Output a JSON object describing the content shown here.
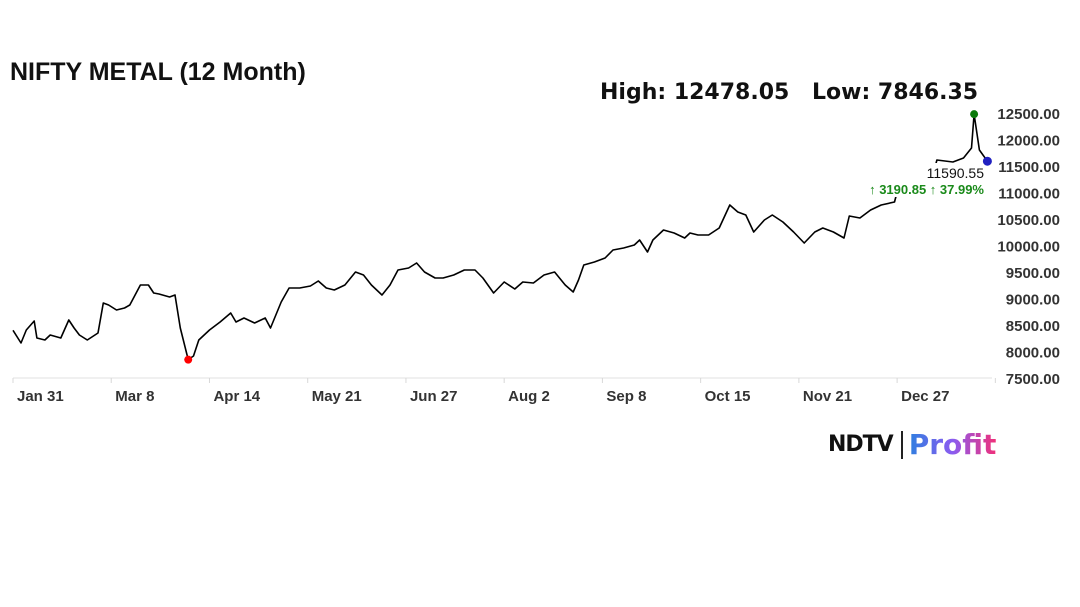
{
  "chart_data": {
    "type": "line",
    "title": "NIFTY METAL (12 Month)",
    "high_label": "High: 12478.05",
    "low_label": "Low: 7846.35",
    "last_value_label": "11590.55",
    "change_label": "↑ 3190.85 ↑ 37.99%",
    "x_tick_labels": [
      "Jan 31",
      "Mar 8",
      "Apr 14",
      "May 21",
      "Jun 27",
      "Aug 2",
      "Sep 8",
      "Oct 15",
      "Nov 21",
      "Dec 27"
    ],
    "y_tick_labels": [
      "7500.00",
      "8000.00",
      "8500.00",
      "9000.00",
      "9500.00",
      "10000.00",
      "10500.00",
      "11000.00",
      "11500.00",
      "12000.00",
      "12500.00"
    ],
    "ylim": [
      7500,
      12500
    ],
    "grid": false,
    "colors": {
      "line": "#000000",
      "low_marker": "#ff0000",
      "high_marker": "#0a7a0a",
      "last_marker": "#2020c0",
      "change": "#1a8a1a"
    },
    "series": [
      {
        "x": [
          "Jan 31",
          "Feb 3",
          "Feb 5",
          "Feb 8",
          "Feb 9",
          "Feb 12",
          "Feb 14",
          "Feb 18",
          "Feb 21",
          "Feb 23",
          "Feb 25",
          "Feb 28",
          "Mar 4",
          "Mar 6",
          "Mar 8",
          "Mar 11",
          "Mar 14",
          "Mar 16",
          "Mar 20",
          "Mar 23",
          "Mar 25",
          "Mar 27",
          "Mar 31",
          "Apr 2",
          "Apr 4",
          "Apr 7",
          "Apr 9",
          "Apr 11",
          "Apr 15",
          "Apr 19",
          "Apr 23",
          "Apr 25",
          "Apr 28",
          "May 2",
          "May 6",
          "May 8",
          "May 12",
          "May 15",
          "May 19",
          "May 23",
          "May 26",
          "May 29",
          "Jun 1",
          "Jun 5",
          "Jun 9",
          "Jun 12",
          "Jun 15",
          "Jun 19",
          "Jun 22",
          "Jun 25",
          "Jun 29",
          "Jul 2",
          "Jul 5",
          "Jul 9",
          "Jul 12",
          "Jul 16",
          "Jul 20",
          "Jul 24",
          "Jul 27",
          "Jul 31",
          "Aug 4",
          "Aug 8",
          "Aug 11",
          "Aug 15",
          "Aug 19",
          "Aug 23",
          "Aug 27",
          "Aug 30",
          "Sep 1",
          "Sep 3",
          "Sep 7",
          "Sep 11",
          "Sep 14",
          "Sep 18",
          "Sep 22",
          "Sep 24",
          "Sep 27",
          "Sep 29",
          "Oct 3",
          "Oct 7",
          "Oct 11",
          "Oct 13",
          "Oct 16",
          "Oct 20",
          "Oct 24",
          "Oct 28",
          "Oct 31",
          "Nov 3",
          "Nov 6",
          "Nov 10",
          "Nov 13",
          "Nov 17",
          "Nov 21",
          "Nov 25",
          "Nov 29",
          "Dec 2",
          "Dec 6",
          "Dec 10",
          "Dec 12",
          "Dec 16",
          "Dec 20",
          "Dec 24",
          "Dec 29",
          "Jan 1",
          "Jan 6",
          "Jan 9",
          "Jan 13",
          "Jan 14",
          "Jan 20",
          "Jan 24",
          "Jan 27",
          "Jan 28",
          "Jan 30",
          "Feb 2"
        ],
        "values": [
          8399.7,
          8160,
          8406,
          8575,
          8255,
          8217,
          8311,
          8255,
          8594,
          8443,
          8311,
          8217,
          8349,
          8915,
          8877,
          8783,
          8821,
          8877,
          9255,
          9255,
          9104,
          9085,
          9028,
          9066,
          8443,
          7846.35,
          7915,
          8217,
          8406,
          8557,
          8726,
          8557,
          8632,
          8538,
          8632,
          8443,
          8934,
          9198,
          9198,
          9236,
          9330,
          9198,
          9160,
          9255,
          9500,
          9443,
          9255,
          9066,
          9255,
          9538,
          9575,
          9670,
          9500,
          9387,
          9387,
          9443,
          9538,
          9538,
          9387,
          9104,
          9311,
          9179,
          9311,
          9292,
          9443,
          9500,
          9255,
          9123,
          9349,
          9632,
          9689,
          9764,
          9915,
          9953,
          10009,
          10104,
          9877,
          10104,
          10292,
          10236,
          10142,
          10236,
          10198,
          10198,
          10330,
          10764,
          10632,
          10575,
          10255,
          10481,
          10575,
          10443,
          10255,
          10047,
          10255,
          10330,
          10255,
          10142,
          10557,
          10519,
          10670,
          10764,
          10821,
          11387,
          11519,
          11236,
          11425,
          11613,
          11575,
          11651,
          11840,
          12478.05,
          11802,
          11590.55
        ]
      }
    ]
  },
  "branding": {
    "logo_left": "NDTV",
    "logo_right": "Profit"
  }
}
